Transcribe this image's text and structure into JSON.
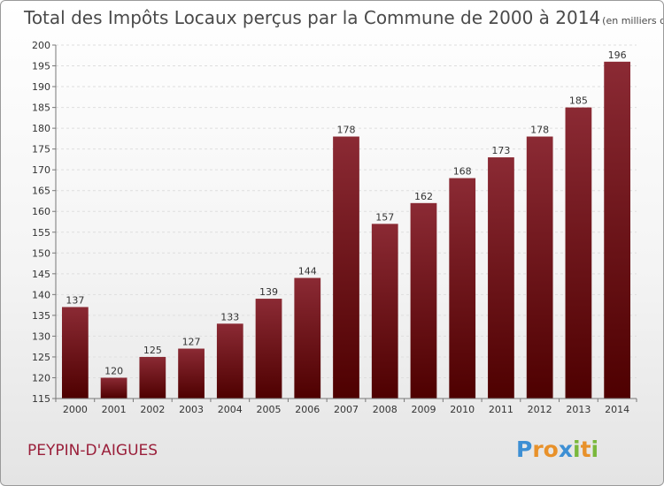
{
  "chart_data": {
    "type": "bar",
    "title": "Total des Impôts Locaux perçus par la Commune de 2000 à 2014",
    "subtitle": "(en milliers d'€)",
    "categories": [
      "2000",
      "2001",
      "2002",
      "2003",
      "2004",
      "2005",
      "2006",
      "2007",
      "2008",
      "2009",
      "2010",
      "2011",
      "2012",
      "2013",
      "2014"
    ],
    "values": [
      137,
      120,
      125,
      127,
      133,
      139,
      144,
      178,
      157,
      162,
      168,
      173,
      178,
      185,
      196
    ],
    "ylim": [
      115,
      200
    ],
    "yticks": [
      115,
      120,
      125,
      130,
      135,
      140,
      145,
      150,
      155,
      160,
      165,
      170,
      175,
      180,
      185,
      190,
      195,
      200
    ],
    "grid": true,
    "bar_color_top": "#8b2a34",
    "bar_color_bottom": "#4e0000"
  },
  "commune": "PEYPIN-D'AIGUES",
  "logo": {
    "letters": [
      "P",
      "r",
      "o",
      "x",
      "i",
      "t",
      "i"
    ],
    "colors": [
      "#3d8fd4",
      "#e8912a",
      "#e8912a",
      "#3d8fd4",
      "#7ab83c",
      "#e8912a",
      "#7ab83c"
    ]
  }
}
